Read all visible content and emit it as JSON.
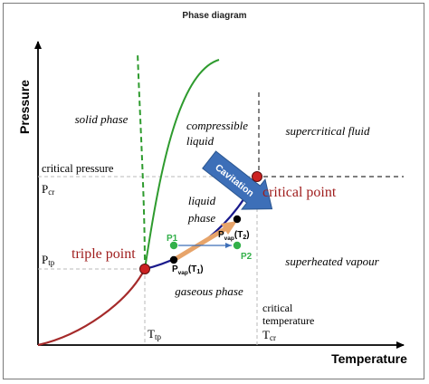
{
  "title": "Phase diagram",
  "axes": {
    "x_label": "Temperature",
    "y_label": "Pressure",
    "x_ticks": {
      "tp": "T",
      "tp_sub": "tp",
      "cr": "T",
      "cr_sub": "cr"
    },
    "y_ticks": {
      "cr": "P",
      "cr_sub": "cr",
      "tp": "P",
      "tp_sub": "tp"
    }
  },
  "regions": {
    "solid": "solid phase",
    "compressible_1": "compressible",
    "compressible_2": "liquid",
    "supercritical": "supercritical fluid",
    "liquid_1": "liquid",
    "liquid_2": "phase",
    "gaseous": "gaseous phase",
    "superheated": "superheated vapour"
  },
  "labels": {
    "critical_pressure": "critical pressure",
    "critical_temperature_1": "critical",
    "critical_temperature_2": "temperature",
    "triple_point": "triple point",
    "critical_point": "critical point",
    "cavitation": "Cavitation",
    "p1": "P1",
    "p2": "P2",
    "pvap1": {
      "main": "P",
      "sub": "vap",
      "arg": "(T",
      "arg_sub": "1",
      "close": ")"
    },
    "pvap2": {
      "main": "P",
      "sub": "vap",
      "arg": "(T",
      "arg_sub": "2",
      "close": ")"
    }
  },
  "colors": {
    "sublimation_curve": "#a52a2a",
    "melting_curve": "#2e9b2e",
    "vaporization_curve": "#1a1a8c",
    "point_marker": "#cc2222",
    "green_point": "#33b04a",
    "cavitation_arrow": "#3d6fb8",
    "orange_arrow": "#e7a46a",
    "dark_red_text": "#9e1b1b"
  }
}
